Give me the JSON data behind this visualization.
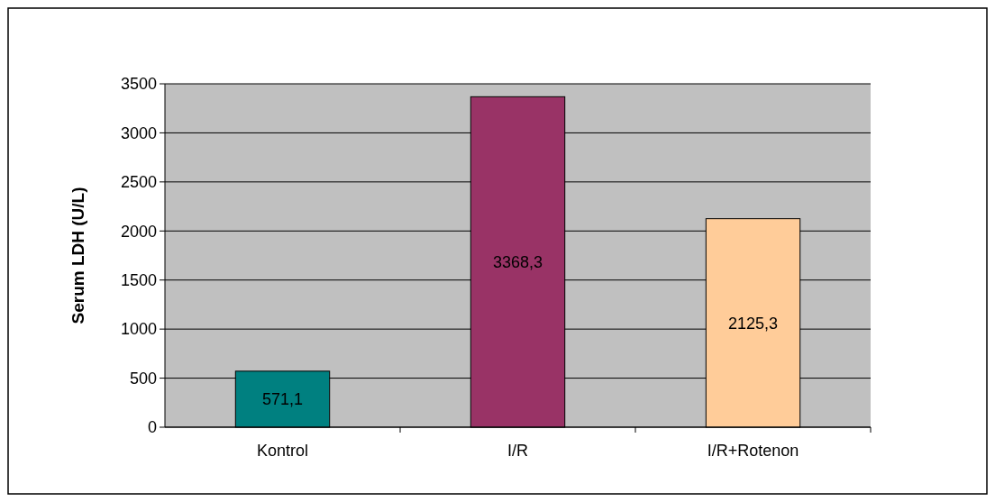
{
  "chart_data": {
    "type": "bar",
    "ylabel": "Serum LDH (U/L)",
    "categories": [
      "Kontrol",
      "I/R",
      "I/R+Rotenon"
    ],
    "values": [
      571.1,
      3368.3,
      2125.3
    ],
    "colors": [
      "#008080",
      "#993366",
      "#ffcc99"
    ],
    "value_labels": [
      "571,1",
      "3368,3",
      "2125,3"
    ],
    "ylim": [
      0,
      3500
    ],
    "yticks": [
      0,
      500,
      1000,
      1500,
      2000,
      2500,
      3000,
      3500
    ],
    "grid": "y"
  }
}
